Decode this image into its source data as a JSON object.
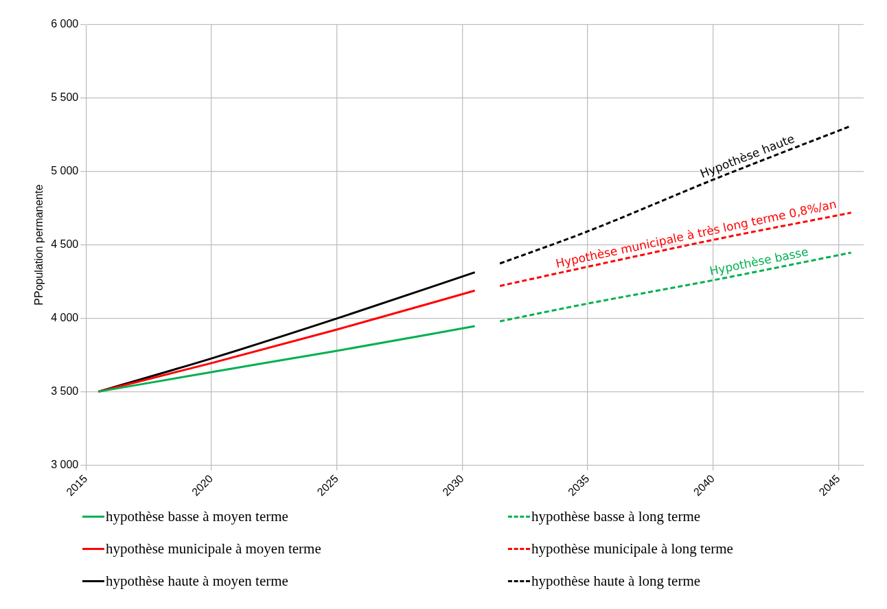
{
  "chart_data": {
    "type": "line",
    "ylabel": "PPopulation permanente",
    "xlim": [
      2015,
      2046
    ],
    "xticks": [
      2015,
      2020,
      2025,
      2030,
      2035,
      2040,
      2045
    ],
    "ylim": [
      3000,
      6000
    ],
    "yticks": [
      {
        "value": 3000,
        "label": "3 000"
      },
      {
        "value": 3500,
        "label": "3 500"
      },
      {
        "value": 4000,
        "label": "4 000"
      },
      {
        "value": 4500,
        "label": "4 500"
      },
      {
        "value": 5000,
        "label": "5 000"
      },
      {
        "value": 5500,
        "label": "5 500"
      },
      {
        "value": 6000,
        "label": "6 000"
      }
    ],
    "grid": true,
    "legend": "bottom",
    "marker": "none",
    "series": [
      {
        "name": "hypothèse basse à moyen terme",
        "color": "#00b050",
        "line_style": "solid",
        "x": [
          2015.5,
          2020,
          2025,
          2030.5
        ],
        "values": [
          3500,
          3633,
          3778,
          3946
        ]
      },
      {
        "name": "hypothèse basse à long terme",
        "color": "#00b050",
        "line_style": "dashed",
        "x": [
          2031.5,
          2035,
          2040,
          2045.5
        ],
        "values": [
          3979,
          4100,
          4259,
          4447
        ]
      },
      {
        "name": "hypothèse municipale à moyen terme",
        "color": "#ff0000",
        "line_style": "solid",
        "x": [
          2015.5,
          2020,
          2025,
          2030.5
        ],
        "values": [
          3500,
          3694,
          3923,
          4188
        ]
      },
      {
        "name": "hypothèse municipale à long terme",
        "color": "#ff0000",
        "line_style": "dashed",
        "x": [
          2031.5,
          2035,
          2040,
          2045.5
        ],
        "values": [
          4220,
          4351,
          4534,
          4719
        ]
      },
      {
        "name": "hypothèse haute à moyen terme",
        "color": "#000000",
        "line_style": "solid",
        "x": [
          2015.5,
          2020,
          2025,
          2030.5
        ],
        "values": [
          3500,
          3726,
          3998,
          4313
        ]
      },
      {
        "name": "hypothèse haute à long terme",
        "color": "#000000",
        "line_style": "dashed",
        "x": [
          2031.5,
          2035,
          2040,
          2045.5
        ],
        "values": [
          4373,
          4592,
          4944,
          5311
        ]
      }
    ],
    "annotations": [
      {
        "text": "Hypothèse haute",
        "x": 2041.5,
        "y": 5044
      },
      {
        "text": "Hypothèse municipale à très long terme 0,8%/an",
        "x": 2039.4,
        "y": 4512
      },
      {
        "text": "Hypothèse basse",
        "x": 2041.9,
        "y": 4324
      }
    ]
  }
}
